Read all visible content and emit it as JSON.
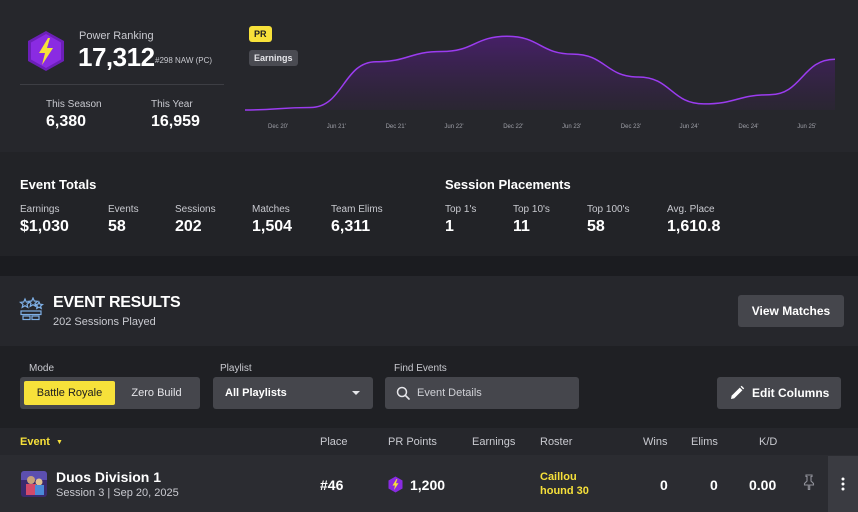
{
  "power_ranking": {
    "label": "Power Ranking",
    "value": "17,312",
    "region_rank": "#298 NAW (PC)",
    "this_season_label": "This Season",
    "this_season_value": "6,380",
    "this_year_label": "This Year",
    "this_year_value": "16,959"
  },
  "chart": {
    "pill_pr": "PR",
    "pill_earnings": "Earnings",
    "x_ticks": [
      "Dec 20'",
      "Jun 21'",
      "Dec 21'",
      "Jun 22'",
      "Dec 22'",
      "Jun 23'",
      "Dec 23'",
      "Jun 24'",
      "Dec 24'",
      "Jun 25'"
    ]
  },
  "chart_data": {
    "type": "area",
    "title": "",
    "xlabel": "",
    "ylabel": "",
    "x": [
      "Dec 20'",
      "Jun 21'",
      "Dec 21'",
      "Jun 22'",
      "Dec 22'",
      "Jun 23'",
      "Dec 23'",
      "Jun 24'",
      "Dec 24'",
      "Jun 25'"
    ],
    "series": [
      {
        "name": "PR",
        "values": [
          0,
          500,
          9500,
          11500,
          14500,
          11000,
          6500,
          1200,
          3000,
          10000
        ]
      }
    ],
    "ylim": [
      0,
      17312
    ],
    "grid": false
  },
  "event_totals": {
    "title": "Event Totals",
    "items": [
      {
        "label": "Earnings",
        "value": "$1,030"
      },
      {
        "label": "Events",
        "value": "58"
      },
      {
        "label": "Sessions",
        "value": "202"
      },
      {
        "label": "Matches",
        "value": "1,504"
      },
      {
        "label": "Team Elims",
        "value": "6,311"
      }
    ]
  },
  "session_placements": {
    "title": "Session Placements",
    "items": [
      {
        "label": "Top 1's",
        "value": "1"
      },
      {
        "label": "Top 10's",
        "value": "11"
      },
      {
        "label": "Top 100's",
        "value": "58"
      },
      {
        "label": "Avg. Place",
        "value": "1,610.8"
      }
    ]
  },
  "event_results": {
    "title": "EVENT RESULTS",
    "subtitle": "202 Sessions Played",
    "view_matches_label": "View Matches"
  },
  "filters": {
    "mode_label": "Mode",
    "mode_options": [
      "Battle Royale",
      "Zero Build"
    ],
    "playlist_label": "Playlist",
    "playlist_value": "All Playlists",
    "find_label": "Find Events",
    "find_placeholder": "Event Details",
    "edit_columns_label": "Edit Columns"
  },
  "table": {
    "headers": {
      "event": "Event",
      "place": "Place",
      "pr_points": "PR Points",
      "earnings": "Earnings",
      "roster": "Roster",
      "wins": "Wins",
      "elims": "Elims",
      "kd": "K/D"
    },
    "rows": [
      {
        "name": "Duos Division 1",
        "sub": "Session 3 | Sep 20, 2025",
        "place": "#46",
        "pr_points": "1,200",
        "roster_1": "Caillou",
        "roster_2": "hound 30",
        "wins": "0",
        "elims": "0",
        "kd": "0.00"
      }
    ]
  },
  "colors": {
    "accent_yellow": "#f7e13a",
    "accent_purple": "#8a2be2",
    "panel": "#26272c"
  }
}
